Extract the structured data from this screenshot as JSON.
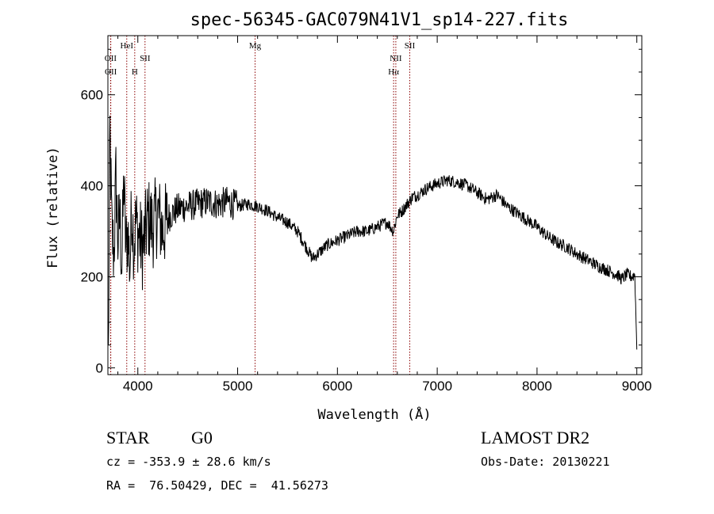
{
  "chart_data": {
    "type": "line",
    "title": "spec-56345-GAC079N41V1_sp14-227.fits",
    "xlabel": "Wavelength (Å)",
    "ylabel": "Flux (relative)",
    "xlim": [
      3700,
      9050
    ],
    "ylim": [
      -15,
      730
    ],
    "xticks": [
      4000,
      5000,
      6000,
      7000,
      8000,
      9000
    ],
    "yticks": [
      0,
      200,
      400,
      600
    ],
    "grid": false,
    "line_color": "#000000",
    "marker_color": "#8b0000",
    "spectral_lines": [
      {
        "label": "OII",
        "x": 3727,
        "row": 3
      },
      {
        "label": "OII",
        "x": 3729,
        "row": 4
      },
      {
        "label": "HeI",
        "x": 3889,
        "row": 1
      },
      {
        "label": "H",
        "x": 3969,
        "row": 4
      },
      {
        "label": "SII",
        "x": 4072,
        "row": 3
      },
      {
        "label": "Mg",
        "x": 5175,
        "row": 2
      },
      {
        "label": "NII",
        "x": 6585,
        "row": 3
      },
      {
        "label": "Hα",
        "x": 6563,
        "row": 4
      },
      {
        "label": "SII",
        "x": 6725,
        "row": 2
      }
    ],
    "series": [
      {
        "x": [
          3705,
          3720,
          3740,
          3760,
          3780,
          3800,
          3820,
          3840,
          3860,
          3880,
          3900,
          3920,
          3940,
          3960,
          3980,
          4000,
          4050,
          4100,
          4150,
          4200,
          4250,
          4300,
          4400,
          4500,
          4600,
          4700,
          4800,
          4900,
          5000,
          5100,
          5200,
          5300,
          5400,
          5500,
          5600,
          5700,
          5750,
          5800,
          5900,
          6000,
          6100,
          6200,
          6300,
          6400,
          6500,
          6560,
          6600,
          6650,
          6700,
          6750,
          6800,
          6900,
          7000,
          7100,
          7200,
          7300,
          7400,
          7500,
          7600,
          7700,
          7800,
          7900,
          8000,
          8100,
          8200,
          8300,
          8400,
          8500,
          8600,
          8700,
          8800,
          8850,
          8900,
          8950,
          8980,
          9000
        ],
        "y": [
          20,
          520,
          300,
          250,
          420,
          280,
          330,
          230,
          410,
          260,
          300,
          220,
          360,
          270,
          320,
          300,
          260,
          330,
          310,
          340,
          300,
          330,
          350,
          355,
          360,
          365,
          360,
          365,
          355,
          360,
          355,
          345,
          330,
          320,
          300,
          260,
          240,
          250,
          270,
          280,
          290,
          300,
          300,
          310,
          320,
          300,
          335,
          345,
          360,
          375,
          380,
          395,
          405,
          412,
          408,
          400,
          385,
          370,
          380,
          355,
          340,
          325,
          310,
          290,
          275,
          265,
          250,
          238,
          225,
          215,
          205,
          195,
          205,
          200,
          205,
          40
        ]
      }
    ]
  },
  "footer": {
    "object_class": "STAR",
    "subclass": "G0",
    "survey": "LAMOST DR2",
    "cz": "cz = -353.9 ± 28.6 km/s",
    "obs_date": "Obs-Date: 20130221",
    "coords": "RA =  76.50429, DEC =  41.56273"
  }
}
